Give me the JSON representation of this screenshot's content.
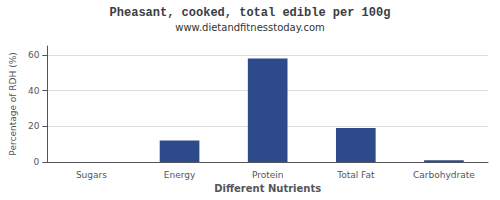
{
  "chart_data": {
    "type": "bar",
    "title": "Pheasant, cooked, total edible per 100g",
    "subtitle": "www.dietandfitnesstoday.com",
    "xlabel": "Different Nutrients",
    "ylabel": "Percentage of RDH (%)",
    "categories": [
      "Sugars",
      "Energy",
      "Protein",
      "Total Fat",
      "Carbohydrate"
    ],
    "values": [
      0.0,
      12.0,
      58.0,
      19.0,
      1.0
    ],
    "color": "#2d4a8a",
    "ylim": [
      0,
      65
    ],
    "yticks": [
      0,
      20,
      40,
      60
    ],
    "grid": true
  }
}
